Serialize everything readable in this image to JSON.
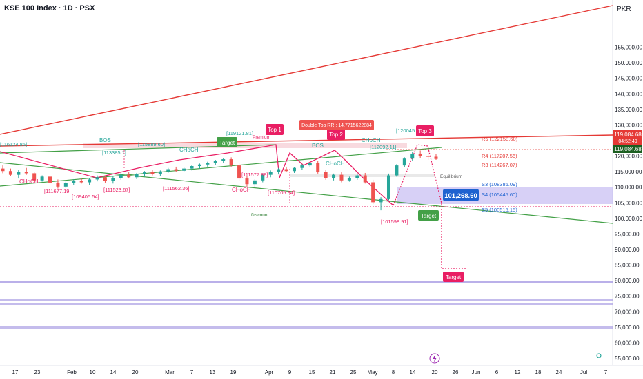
{
  "header": {
    "title": "KSE 100 Index · 1D · PSX",
    "currency": "PKR"
  },
  "chart_data": {
    "type": "candlestick",
    "ylim": [
      55000,
      160000
    ],
    "y_ticks": [
      "55,000.00",
      "60,000.00",
      "65,000.00",
      "70,000.00",
      "75,000.00",
      "80,000.00",
      "85,000.00",
      "90,000.00",
      "95,000.00",
      "100,000.00",
      "105,000.00",
      "110,000.00",
      "115,000.00",
      "120,000.00",
      "125,000.00",
      "130,000.00",
      "135,000.00",
      "140,000.00",
      "145,000.00",
      "150,000.00",
      "155,000.00"
    ],
    "x_ticks": [
      "17",
      "23",
      "Feb",
      "10",
      "14",
      "20",
      "Mar",
      "7",
      "13",
      "19",
      "Apr",
      "9",
      "15",
      "21",
      "25",
      "May",
      "8",
      "14",
      "20",
      "26",
      "Jun",
      "6",
      "12",
      "18",
      "24",
      "Jul",
      "7"
    ],
    "price_badges": {
      "last": "119,084.68",
      "countdown": "04:52:49",
      "last2": "119,084.68",
      "cursor": "101,268.60"
    },
    "pivot_levels": [
      {
        "label": "R5 (122158.60)",
        "value": 122158.6
      },
      {
        "label": "R4 (117207.56)",
        "value": 117207.56
      },
      {
        "label": "R3 (114267.07)",
        "value": 114267.07
      },
      {
        "label": "Equilibrium",
        "value": 110800
      },
      {
        "label": "S3 (108386.09)",
        "value": 108386.09
      },
      {
        "label": "S4 (105445.60)",
        "value": 105445.6
      },
      {
        "label": "S5 (100515.15)",
        "value": 100515.15
      }
    ],
    "structure_labels": [
      "BOS",
      "CHoCH",
      "CHoCH",
      "CHoCH",
      "BOS",
      "CHoCH",
      "CHoCH",
      "Premium",
      "Discount"
    ],
    "pattern_labels": {
      "top1": "Top 1",
      "top2": "Top 2",
      "top3": "Top 3",
      "double_top": "Double Top RR : 14.7715622884",
      "target": "Target"
    },
    "bracket_values": [
      "[116124.85]",
      "[113385.1]",
      "[115889.60]",
      "[119121.81]",
      "[120045.5]",
      "[111577.88]",
      "[110705.94]",
      "[111562.36]",
      "[109405.54]",
      "[111677.19]",
      "[111523.67]",
      "[101598.91]",
      "[112092.11]",
      "[122158.60]"
    ],
    "candles": [
      [
        116000,
        117000,
        114500,
        115200
      ],
      [
        115200,
        116000,
        113500,
        114000
      ],
      [
        114000,
        115500,
        112800,
        115000
      ],
      [
        115000,
        116200,
        114000,
        114500
      ],
      [
        114500,
        115000,
        111500,
        112200
      ],
      [
        112200,
        113800,
        111800,
        113400
      ],
      [
        113400,
        114000,
        111000,
        111500
      ],
      [
        111500,
        112500,
        109600,
        110200
      ],
      [
        110200,
        111800,
        109800,
        111400
      ],
      [
        111400,
        112600,
        110600,
        112000
      ],
      [
        112000,
        113000,
        111200,
        111600
      ],
      [
        111600,
        112800,
        110800,
        112500
      ],
      [
        112500,
        113800,
        111900,
        113200
      ],
      [
        113200,
        113600,
        111500,
        112000
      ],
      [
        112000,
        113500,
        111200,
        113000
      ],
      [
        113000,
        114500,
        112400,
        114000
      ],
      [
        114000,
        114800,
        112800,
        113200
      ],
      [
        113200,
        114600,
        112600,
        114200
      ],
      [
        114200,
        115200,
        113400,
        114800
      ],
      [
        114800,
        115600,
        113800,
        114200
      ],
      [
        114200,
        115400,
        113600,
        115100
      ],
      [
        115100,
        116200,
        114600,
        115800
      ],
      [
        115800,
        116600,
        114900,
        115300
      ],
      [
        115300,
        116400,
        114800,
        116000
      ],
      [
        116000,
        117200,
        115400,
        116800
      ],
      [
        116800,
        117600,
        116000,
        117300
      ],
      [
        117300,
        118200,
        116600,
        117900
      ],
      [
        117900,
        118800,
        117200,
        118400
      ],
      [
        118400,
        119400,
        117800,
        119000
      ],
      [
        119000,
        119600,
        116600,
        117000
      ],
      [
        117000,
        117800,
        112000,
        112800
      ],
      [
        112800,
        113600,
        110200,
        111000
      ],
      [
        111000,
        112600,
        109800,
        112200
      ],
      [
        112200,
        114400,
        111600,
        114000
      ],
      [
        114000,
        115400,
        113200,
        115000
      ],
      [
        115000,
        116200,
        114200,
        115800
      ],
      [
        115800,
        116600,
        114800,
        115200
      ],
      [
        115200,
        116400,
        114600,
        116200
      ],
      [
        116200,
        117400,
        115600,
        117000
      ],
      [
        117000,
        118200,
        116400,
        117800
      ],
      [
        117800,
        118400,
        114400,
        115000
      ],
      [
        115000,
        115600,
        112400,
        113000
      ],
      [
        113000,
        114400,
        112200,
        114000
      ],
      [
        114000,
        114800,
        111600,
        112200
      ],
      [
        112200,
        113400,
        111800,
        113000
      ],
      [
        113000,
        114200,
        112400,
        113800
      ],
      [
        113800,
        114600,
        111200,
        111600
      ],
      [
        111600,
        112400,
        104600,
        105200
      ],
      [
        105200,
        106800,
        102600,
        106200
      ],
      [
        106200,
        114400,
        105800,
        113800
      ],
      [
        113800,
        117400,
        113400,
        117000
      ],
      [
        117000,
        119600,
        116400,
        119200
      ],
      [
        119200,
        121400,
        118400,
        120800
      ],
      [
        120800,
        121800,
        119400,
        120000
      ],
      [
        120000,
        121200,
        118800,
        119800
      ],
      [
        119800,
        120600,
        118800,
        119085
      ]
    ]
  }
}
